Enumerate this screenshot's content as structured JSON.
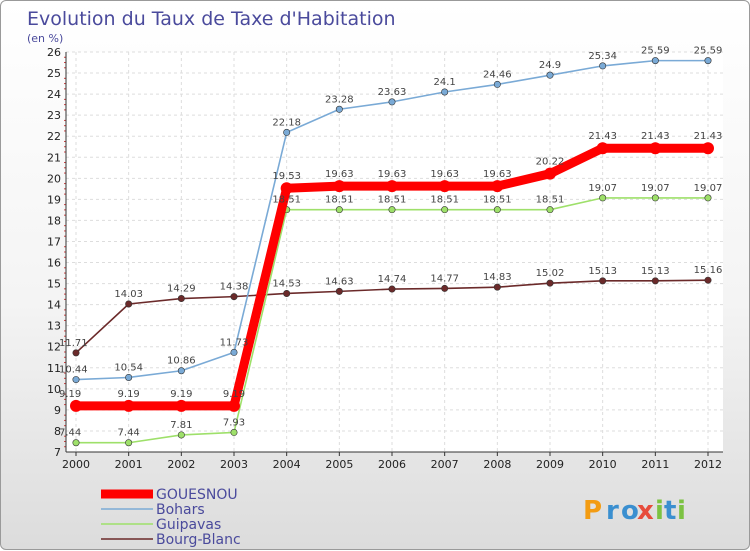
{
  "chart_data": {
    "type": "line",
    "title": "Evolution du Taux de Taxe d'Habitation",
    "subtitle": "(en %)",
    "xlabel": "",
    "ylabel": "(en %)",
    "x": [
      "2000",
      "2001",
      "2002",
      "2003",
      "2004",
      "2005",
      "2006",
      "2007",
      "2008",
      "2009",
      "2010",
      "2011",
      "2012"
    ],
    "ylim": [
      7,
      26
    ],
    "yticks": [
      "7",
      "8",
      "9",
      "10",
      "11",
      "12",
      "13",
      "14",
      "15",
      "16",
      "17",
      "18",
      "19",
      "20",
      "21",
      "22",
      "23",
      "24",
      "25",
      "26"
    ],
    "grid": true,
    "legend_position": "bottom-left",
    "series": [
      {
        "name": "GOUESNOU",
        "color": "#ff0000",
        "values": [
          9.19,
          9.19,
          9.19,
          9.19,
          19.53,
          19.63,
          19.63,
          19.63,
          19.63,
          20.22,
          21.43,
          21.43,
          21.43
        ],
        "labels": [
          "9.19",
          "9.19",
          "9.19",
          "9.19",
          "19.53",
          "19.63",
          "19.63",
          "19.63",
          "19.63",
          "20.22",
          "21.43",
          "21.43",
          "21.43"
        ]
      },
      {
        "name": "Bohars",
        "color": "#7aaad6",
        "values": [
          10.44,
          10.54,
          10.86,
          11.73,
          22.18,
          23.28,
          23.63,
          24.1,
          24.46,
          24.9,
          25.34,
          25.59,
          25.59
        ],
        "labels": [
          "10.44",
          "10.54",
          "10.86",
          "11.73",
          "22.18",
          "23.28",
          "23.63",
          "24.1",
          "24.46",
          "24.9",
          "25.34",
          "25.59",
          "25.59"
        ]
      },
      {
        "name": "Guipavas",
        "color": "#9ee06a",
        "values": [
          7.44,
          7.44,
          7.81,
          7.93,
          18.51,
          18.51,
          18.51,
          18.51,
          18.51,
          18.51,
          19.07,
          19.07,
          19.07
        ],
        "labels": [
          "7.44",
          "7.44",
          "7.81",
          "7.93",
          "18.51",
          "18.51",
          "18.51",
          "18.51",
          "18.51",
          "18.51",
          "19.07",
          "19.07",
          "19.07"
        ]
      },
      {
        "name": "Bourg-Blanc",
        "color": "#6b2a2a",
        "values": [
          11.71,
          14.03,
          14.29,
          14.38,
          14.53,
          14.63,
          14.74,
          14.77,
          14.83,
          15.02,
          15.13,
          15.13,
          15.16
        ],
        "labels": [
          "11.71",
          "14.03",
          "14.29",
          "14.38",
          "14.53",
          "14.63",
          "14.74",
          "14.77",
          "14.83",
          "15.02",
          "15.13",
          "15.13",
          "15.16"
        ]
      }
    ]
  },
  "brand": {
    "name": "Proxiti",
    "letters": [
      "P",
      "r",
      "o",
      "x",
      "i",
      "t",
      "i"
    ],
    "colors": [
      "#f39c12",
      "#3a8fd0",
      "#3a8fd0",
      "#e74c3c",
      "#7cc242",
      "#3a8fd0",
      "#7cc242"
    ]
  }
}
